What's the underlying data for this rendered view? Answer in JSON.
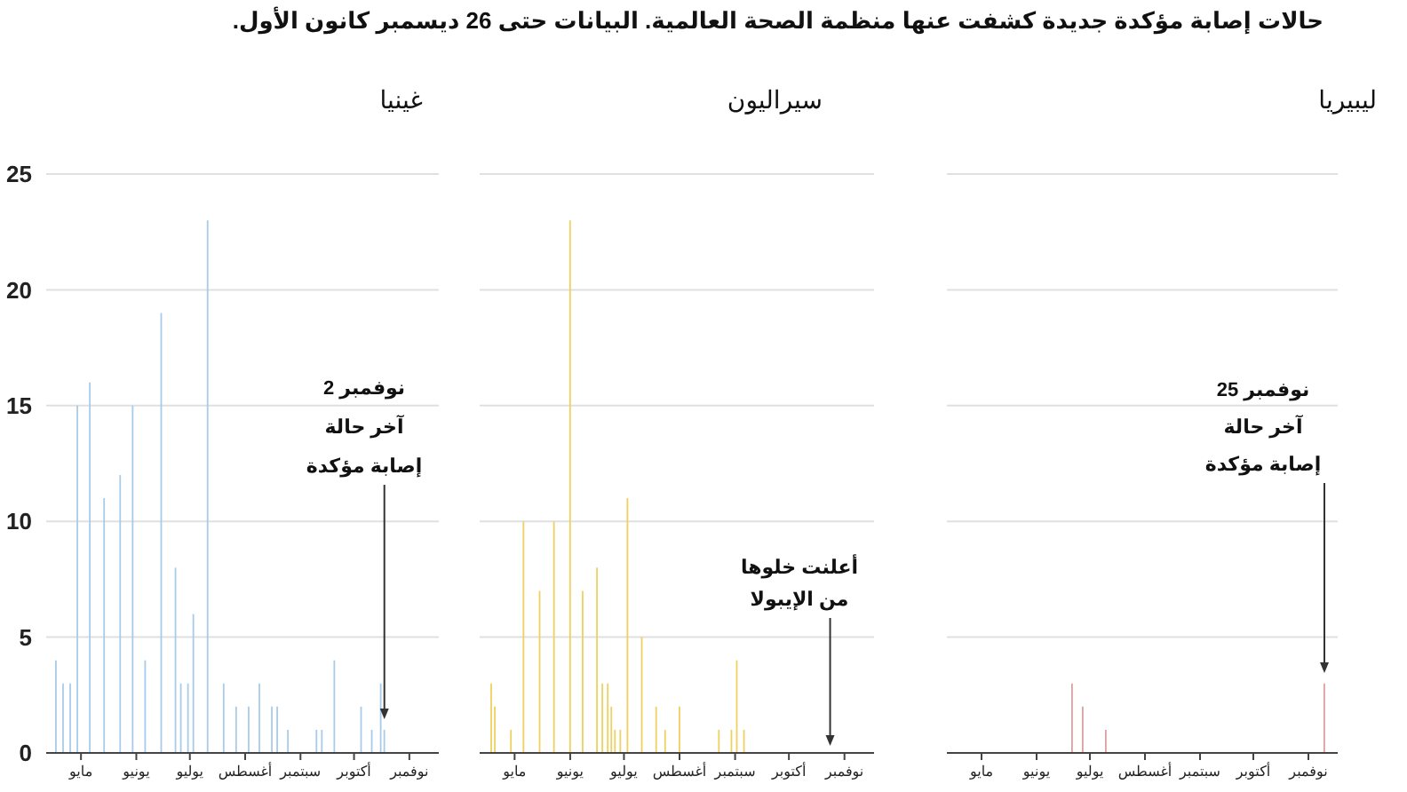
{
  "chart_data": [
    {
      "type": "bar",
      "title": "غينيا",
      "annotations": [
        "حالات إصابة مؤكدة جديدة كشفت عنها منظمة الصحة العالمية. البيانات حتى 26 ديسمبر كانون الأول.",
        "2 نوفمبر\nآخر حالة\nإصابة مؤكدة"
      ],
      "categories": [
        null,
        null,
        null,
        null,
        null,
        null,
        null,
        null,
        null,
        null,
        null,
        null,
        null,
        null,
        null,
        null,
        null,
        null,
        null,
        "مايو",
        null,
        null,
        null,
        null,
        null,
        null,
        null,
        null,
        null,
        null,
        null,
        null,
        null,
        null,
        null,
        null,
        null,
        null,
        null,
        null,
        null,
        null,
        null,
        null,
        null,
        null,
        null,
        null,
        null,
        null,
        "يونيو",
        null,
        null,
        null,
        null,
        null,
        null,
        null,
        null,
        null,
        null,
        null,
        null,
        null,
        null,
        null,
        null,
        null,
        null,
        null,
        null,
        null,
        null,
        null,
        null,
        null,
        null,
        null,
        null,
        null,
        "يوليو",
        null,
        null,
        null,
        null,
        null,
        null,
        null,
        null,
        null,
        null,
        null,
        null,
        null,
        null,
        null,
        null,
        null,
        null,
        null,
        null,
        null,
        null,
        null,
        null,
        null,
        null,
        null,
        null,
        null,
        null,
        "أغسطس",
        null,
        null,
        null,
        null,
        null,
        null,
        null,
        null,
        null,
        null,
        null,
        null,
        null,
        null,
        null,
        null,
        null,
        null,
        null,
        null,
        null,
        null,
        null,
        null,
        null,
        null,
        null,
        null,
        null,
        null,
        "سبتمبر",
        null,
        null,
        null,
        null,
        null,
        null,
        null,
        null,
        null,
        null,
        null,
        null,
        null,
        null,
        null,
        null,
        null,
        null,
        null,
        null,
        null,
        null,
        null,
        null,
        null,
        null,
        null,
        null,
        null,
        "أكتوبر",
        null,
        null,
        null,
        null,
        null,
        null,
        null,
        null,
        null,
        null,
        null,
        null,
        null,
        null,
        null,
        null,
        null,
        null,
        null,
        null,
        null,
        null,
        null,
        null,
        null,
        null,
        null,
        null,
        null,
        null,
        "نوفمبر",
        null,
        null,
        null,
        null,
        null,
        null,
        null,
        null,
        null,
        null,
        null,
        null,
        null,
        null,
        null,
        null
      ],
      "values": [
        null,
        null,
        null,
        null,
        null,
        4,
        null,
        null,
        null,
        3,
        null,
        null,
        null,
        3,
        null,
        null,
        null,
        15,
        null,
        null,
        null,
        null,
        null,
        null,
        16,
        null,
        null,
        null,
        null,
        null,
        null,
        null,
        11,
        null,
        null,
        null,
        null,
        null,
        null,
        null,
        null,
        12,
        null,
        null,
        null,
        null,
        null,
        null,
        15,
        null,
        null,
        null,
        null,
        null,
        null,
        4,
        null,
        null,
        null,
        null,
        null,
        null,
        null,
        null,
        19,
        null,
        null,
        null,
        null,
        null,
        null,
        null,
        8,
        null,
        null,
        3,
        null,
        null,
        null,
        3,
        null,
        null,
        6,
        null,
        null,
        null,
        null,
        null,
        null,
        null,
        23,
        null,
        null,
        null,
        null,
        null,
        null,
        null,
        null,
        3,
        null,
        null,
        null,
        null,
        null,
        null,
        2,
        null,
        null,
        null,
        null,
        null,
        null,
        2,
        null,
        null,
        null,
        null,
        null,
        3,
        null,
        null,
        null,
        null,
        null,
        null,
        2,
        null,
        null,
        2,
        null,
        null,
        null,
        null,
        null,
        1,
        null,
        null,
        null,
        null,
        null,
        null,
        null,
        null,
        null,
        null,
        null,
        null,
        null,
        null,
        null,
        1,
        null,
        null,
        1,
        null,
        null,
        null,
        null,
        null,
        null,
        4,
        null,
        null,
        null,
        null,
        null,
        null,
        null,
        null,
        null,
        null,
        null,
        null,
        null,
        null,
        2,
        null,
        null,
        null,
        null,
        null,
        1,
        null,
        null,
        null,
        null,
        3,
        null,
        1,
        null,
        null,
        null,
        null,
        null,
        null,
        null,
        null,
        null,
        null,
        null,
        null,
        null,
        null,
        null,
        null,
        null,
        null,
        null,
        null,
        null,
        null,
        null,
        null,
        null,
        null,
        null,
        null,
        null,
        null
      ],
      "color": "#a9cbea",
      "ylim": [
        0,
        25
      ],
      "yticks": [
        0,
        5,
        10,
        15,
        20,
        25
      ],
      "grid": "y"
    },
    {
      "type": "bar",
      "title": "سيراليون",
      "annotations": [
        "أعلنت خلوها\nمن الإيبولا"
      ],
      "categories": [
        null,
        null,
        null,
        null,
        null,
        null,
        null,
        null,
        null,
        null,
        null,
        null,
        null,
        null,
        null,
        null,
        null,
        null,
        null,
        "مايو",
        null,
        null,
        null,
        null,
        null,
        null,
        null,
        null,
        null,
        null,
        null,
        null,
        null,
        null,
        null,
        null,
        null,
        null,
        null,
        null,
        null,
        null,
        null,
        null,
        null,
        null,
        null,
        null,
        null,
        null,
        "يونيو",
        null,
        null,
        null,
        null,
        null,
        null,
        null,
        null,
        null,
        null,
        null,
        null,
        null,
        null,
        null,
        null,
        null,
        null,
        null,
        null,
        null,
        null,
        null,
        null,
        null,
        null,
        null,
        null,
        null,
        "يوليو",
        null,
        null,
        null,
        null,
        null,
        null,
        null,
        null,
        null,
        null,
        null,
        null,
        null,
        null,
        null,
        null,
        null,
        null,
        null,
        null,
        null,
        null,
        null,
        null,
        null,
        null,
        null,
        null,
        null,
        null,
        "أغسطس",
        null,
        null,
        null,
        null,
        null,
        null,
        null,
        null,
        null,
        null,
        null,
        null,
        null,
        null,
        null,
        null,
        null,
        null,
        null,
        null,
        null,
        null,
        null,
        null,
        null,
        null,
        null,
        null,
        null,
        null,
        "سبتمبر",
        null,
        null,
        null,
        null,
        null,
        null,
        null,
        null,
        null,
        null,
        null,
        null,
        null,
        null,
        null,
        null,
        null,
        null,
        null,
        null,
        null,
        null,
        null,
        null,
        null,
        null,
        null,
        null,
        null,
        "أكتوبر",
        null,
        null,
        null,
        null,
        null,
        null,
        null,
        null,
        null,
        null,
        null,
        null,
        null,
        null,
        null,
        null,
        null,
        null,
        null,
        null,
        null,
        null,
        null,
        null,
        null,
        null,
        null,
        null,
        null,
        null,
        "نوفمبر",
        null,
        null,
        null,
        null,
        null,
        null,
        null,
        null,
        null,
        null,
        null,
        null,
        null,
        null,
        null,
        null
      ],
      "values": [
        null,
        null,
        null,
        null,
        null,
        null,
        3,
        null,
        2,
        null,
        null,
        null,
        null,
        null,
        null,
        null,
        null,
        1,
        null,
        null,
        null,
        null,
        null,
        null,
        10,
        null,
        null,
        null,
        null,
        null,
        null,
        null,
        null,
        7,
        null,
        null,
        null,
        null,
        null,
        null,
        null,
        10,
        null,
        null,
        null,
        null,
        null,
        null,
        null,
        null,
        23,
        null,
        null,
        null,
        null,
        null,
        null,
        7,
        null,
        null,
        null,
        null,
        null,
        null,
        null,
        8,
        null,
        null,
        3,
        null,
        null,
        3,
        null,
        2,
        null,
        1,
        null,
        null,
        1,
        null,
        null,
        null,
        11,
        null,
        null,
        null,
        null,
        null,
        null,
        null,
        5,
        null,
        null,
        null,
        null,
        null,
        null,
        null,
        2,
        null,
        null,
        null,
        null,
        1,
        null,
        null,
        null,
        null,
        null,
        null,
        null,
        2,
        null,
        null,
        null,
        null,
        null,
        null,
        null,
        null,
        null,
        null,
        null,
        null,
        null,
        null,
        null,
        null,
        null,
        null,
        null,
        null,
        null,
        1,
        null,
        null,
        null,
        null,
        null,
        null,
        1,
        null,
        null,
        4,
        null,
        null,
        null,
        1,
        null,
        null,
        null,
        null,
        null,
        null,
        null,
        null,
        null,
        null,
        null,
        null,
        null,
        null,
        null,
        null,
        null,
        null,
        null,
        null,
        null,
        null,
        null,
        null,
        null,
        null,
        null,
        null,
        null,
        null,
        null,
        null,
        null,
        null,
        null,
        null,
        null,
        null,
        null,
        null,
        null,
        null,
        null,
        null,
        null,
        null,
        null,
        null,
        null,
        null,
        null,
        null,
        null,
        null,
        null,
        null,
        null,
        null,
        null,
        null,
        null,
        null,
        null,
        null,
        null,
        null,
        null,
        null,
        null,
        null,
        null,
        null
      ],
      "color": "#f0d060",
      "ylim": [
        0,
        25
      ],
      "yticks": [
        0,
        5,
        10,
        15,
        20,
        25
      ],
      "grid": "y",
      "tick_labels": "x"
    },
    {
      "type": "bar",
      "title": "ليبيريا",
      "annotations": [
        "25 نوفمبر\nآخر حالة\nإصابة مؤكدة"
      ],
      "categories": [
        null,
        null,
        null,
        null,
        null,
        null,
        null,
        null,
        null,
        null,
        null,
        null,
        null,
        null,
        null,
        null,
        null,
        null,
        null,
        "مايو",
        null,
        null,
        null,
        null,
        null,
        null,
        null,
        null,
        null,
        null,
        null,
        null,
        null,
        null,
        null,
        null,
        null,
        null,
        null,
        null,
        null,
        null,
        null,
        null,
        null,
        null,
        null,
        null,
        null,
        null,
        "يونيو",
        null,
        null,
        null,
        null,
        null,
        null,
        null,
        null,
        null,
        null,
        null,
        null,
        null,
        null,
        null,
        null,
        null,
        null,
        null,
        null,
        null,
        null,
        null,
        null,
        null,
        null,
        null,
        null,
        null,
        "يوليو",
        null,
        null,
        null,
        null,
        null,
        null,
        null,
        null,
        null,
        null,
        null,
        null,
        null,
        null,
        null,
        null,
        null,
        null,
        null,
        null,
        null,
        null,
        null,
        null,
        null,
        null,
        null,
        null,
        null,
        null,
        "أغسطس",
        null,
        null,
        null,
        null,
        null,
        null,
        null,
        null,
        null,
        null,
        null,
        null,
        null,
        null,
        null,
        null,
        null,
        null,
        null,
        null,
        null,
        null,
        null,
        null,
        null,
        null,
        null,
        null,
        null,
        null,
        "سبتمبر",
        null,
        null,
        null,
        null,
        null,
        null,
        null,
        null,
        null,
        null,
        null,
        null,
        null,
        null,
        null,
        null,
        null,
        null,
        null,
        null,
        null,
        null,
        null,
        null,
        null,
        null,
        null,
        null,
        null,
        "أكتوبر",
        null,
        null,
        null,
        null,
        null,
        null,
        null,
        null,
        null,
        null,
        null,
        null,
        null,
        null,
        null,
        null,
        null,
        null,
        null,
        null,
        null,
        null,
        null,
        null,
        null,
        null,
        null,
        null,
        null,
        null,
        "نوفمبر",
        null,
        null,
        null,
        null,
        null,
        null,
        null,
        null,
        null,
        null,
        null,
        null,
        null,
        null,
        null,
        null
      ],
      "values": [
        null,
        null,
        null,
        null,
        null,
        null,
        null,
        null,
        null,
        null,
        null,
        null,
        null,
        null,
        null,
        null,
        null,
        null,
        null,
        null,
        null,
        null,
        null,
        null,
        null,
        null,
        null,
        null,
        null,
        null,
        null,
        null,
        null,
        null,
        null,
        null,
        null,
        null,
        null,
        null,
        null,
        null,
        null,
        null,
        null,
        null,
        null,
        null,
        null,
        null,
        null,
        null,
        null,
        null,
        null,
        null,
        null,
        null,
        null,
        null,
        null,
        null,
        null,
        null,
        null,
        null,
        null,
        null,
        null,
        null,
        3,
        null,
        null,
        null,
        null,
        null,
        2,
        null,
        null,
        null,
        null,
        null,
        null,
        null,
        null,
        null,
        null,
        null,
        null,
        1,
        null,
        null,
        null,
        null,
        null,
        null,
        null,
        null,
        null,
        null,
        null,
        null,
        null,
        null,
        null,
        null,
        null,
        null,
        null,
        null,
        null,
        null,
        null,
        null,
        null,
        null,
        null,
        null,
        null,
        null,
        null,
        null,
        null,
        null,
        null,
        null,
        null,
        null,
        null,
        null,
        null,
        null,
        null,
        null,
        null,
        null,
        null,
        null,
        null,
        null,
        null,
        null,
        null,
        null,
        null,
        null,
        null,
        null,
        null,
        null,
        null,
        null,
        null,
        null,
        null,
        null,
        null,
        null,
        null,
        null,
        null,
        null,
        null,
        null,
        null,
        null,
        null,
        null,
        null,
        null,
        null,
        null,
        null,
        null,
        null,
        null,
        null,
        null,
        null,
        null,
        null,
        null,
        null,
        null,
        null,
        null,
        null,
        null,
        null,
        null,
        null,
        null,
        null,
        null,
        null,
        null,
        null,
        null,
        null,
        null,
        null,
        null,
        null,
        null,
        null,
        null,
        null,
        null,
        null,
        null,
        null,
        null,
        3,
        null,
        null,
        null,
        null,
        null,
        null,
        null
      ],
      "color": "#dba0a0",
      "ylim": [
        0,
        25
      ],
      "yticks": [
        0,
        5,
        10,
        15,
        20,
        25
      ],
      "grid": "y",
      "tick_labels": "x"
    }
  ]
}
